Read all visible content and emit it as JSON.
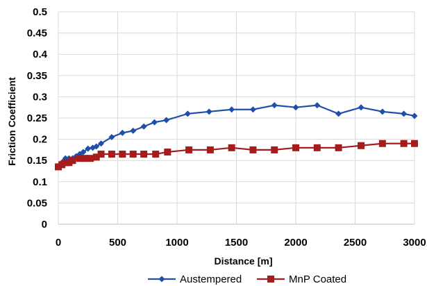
{
  "chart_data": {
    "type": "line",
    "title": "",
    "xlabel": "Distance [m]",
    "ylabel": "Friction Coefficient",
    "xlim": [
      0,
      3000
    ],
    "ylim": [
      0,
      0.5
    ],
    "x_ticks": [
      "0",
      "500",
      "1000",
      "1500",
      "2000",
      "2500",
      "3000"
    ],
    "y_ticks": [
      "0",
      "0.05",
      "0.1",
      "0.15",
      "0.2",
      "0.25",
      "0.3",
      "0.35",
      "0.4",
      "0.45",
      "0.5"
    ],
    "grid": true,
    "legend_position": "bottom",
    "series": [
      {
        "name": "Austempered",
        "color": "#1f4fa8",
        "marker": "diamond",
        "x": [
          0,
          30,
          60,
          90,
          120,
          150,
          180,
          210,
          250,
          290,
          320,
          360,
          450,
          540,
          630,
          720,
          810,
          910,
          1090,
          1270,
          1460,
          1640,
          1820,
          2000,
          2180,
          2360,
          2550,
          2730,
          2910,
          3000
        ],
        "y": [
          0.135,
          0.145,
          0.155,
          0.155,
          0.155,
          0.16,
          0.165,
          0.17,
          0.178,
          0.18,
          0.183,
          0.19,
          0.205,
          0.215,
          0.22,
          0.23,
          0.24,
          0.245,
          0.26,
          0.265,
          0.27,
          0.27,
          0.28,
          0.275,
          0.28,
          0.26,
          0.275,
          0.265,
          0.26,
          0.255
        ]
      },
      {
        "name": "MnP Coated",
        "color": "#a51c1c",
        "marker": "square",
        "x": [
          0,
          30,
          60,
          90,
          120,
          180,
          220,
          270,
          320,
          360,
          450,
          540,
          630,
          720,
          820,
          920,
          1100,
          1280,
          1460,
          1640,
          1820,
          2000,
          2180,
          2360,
          2550,
          2730,
          2910,
          3000
        ],
        "y": [
          0.135,
          0.14,
          0.145,
          0.145,
          0.15,
          0.155,
          0.155,
          0.155,
          0.158,
          0.165,
          0.165,
          0.165,
          0.165,
          0.165,
          0.165,
          0.17,
          0.175,
          0.175,
          0.18,
          0.175,
          0.175,
          0.18,
          0.18,
          0.18,
          0.185,
          0.19,
          0.19,
          0.19
        ]
      }
    ]
  }
}
